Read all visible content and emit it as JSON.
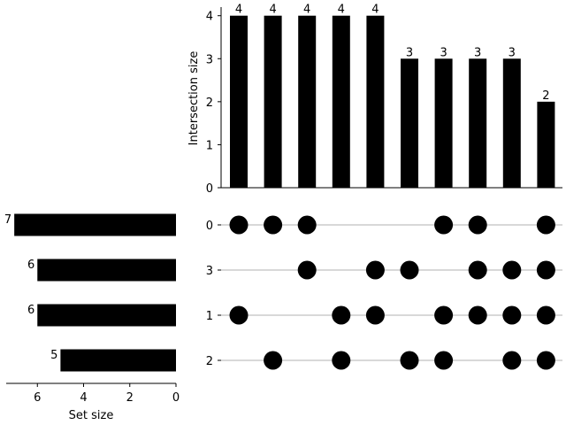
{
  "chart_data": [
    {
      "type": "bar",
      "panel": "intersection-sizes",
      "ylabel": "Intersection size",
      "ylim": [
        0,
        4.2
      ],
      "yticks": [
        "0",
        "1",
        "2",
        "3",
        "4"
      ],
      "values": [
        4,
        4,
        4,
        4,
        4,
        3,
        3,
        3,
        3,
        2
      ],
      "data_labels": [
        "4",
        "4",
        "4",
        "4",
        "4",
        "3",
        "3",
        "3",
        "3",
        "2"
      ],
      "bar_color": "#000000"
    },
    {
      "type": "scatter",
      "panel": "membership-matrix",
      "sets": [
        "0",
        "3",
        "1",
        "2"
      ],
      "membership": [
        [
          "0",
          "1"
        ],
        [
          "0",
          "2"
        ],
        [
          "0",
          "3"
        ],
        [
          "1",
          "2"
        ],
        [
          "3",
          "1"
        ],
        [
          "3",
          "2"
        ],
        [
          "0",
          "1",
          "2"
        ],
        [
          "0",
          "3",
          "1"
        ],
        [
          "3",
          "1",
          "2"
        ],
        [
          "0",
          "3",
          "1",
          "2"
        ]
      ],
      "dot_color": "#000000",
      "line_color": "#b0b0b0"
    },
    {
      "type": "bar",
      "panel": "set-sizes",
      "orientation": "horizontal",
      "direction": "right-to-left",
      "xlabel": "Set size",
      "xlim": [
        0,
        7.35
      ],
      "xticks": [
        "6",
        "4",
        "2",
        "0"
      ],
      "categories": [
        "0",
        "3",
        "1",
        "2"
      ],
      "values": [
        7,
        6,
        6,
        5
      ],
      "data_labels": [
        "7",
        "6",
        "6",
        "5"
      ],
      "bar_color": "#000000"
    }
  ]
}
